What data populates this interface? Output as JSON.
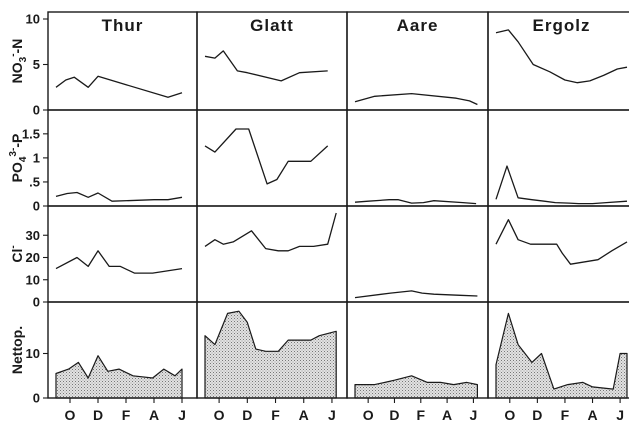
{
  "chart_data": {
    "type": "line",
    "layout": "small-multiples",
    "colors": {
      "line": "#1a1a1a",
      "area_fill": "#c8c8c8"
    },
    "grid": false,
    "legend": "none",
    "x_tick_labels": [
      "O",
      "D",
      "F",
      "A",
      "J"
    ],
    "x_tick_month_index": [
      1,
      3,
      5,
      7,
      9
    ],
    "x_range": [
      0,
      9.5
    ],
    "stations": [
      "Thur",
      "Glatt",
      "Aare",
      "Ergolz"
    ],
    "rows": [
      {
        "key": "nitrate",
        "ylabel_main": "NO",
        "ylabel_sup": "-",
        "ylabel_sub": "3",
        "ylabel_suffix": "-N",
        "ylim": [
          0,
          10
        ],
        "ticks": [
          0,
          5,
          10
        ],
        "tick_labels": [
          "0",
          "5",
          "10"
        ],
        "style": "line",
        "series": [
          {
            "x": [
              0,
              0.7,
              1.3,
              2.3,
              3.0,
              8.0,
              9.0
            ],
            "y": [
              2.5,
              3.3,
              3.6,
              2.5,
              3.7,
              1.4,
              1.9
            ]
          },
          {
            "x": [
              0,
              0.7,
              1.3,
              2.3,
              3.0,
              5.4,
              6.7,
              8.7
            ],
            "y": [
              5.9,
              5.7,
              6.5,
              4.3,
              4.1,
              3.2,
              4.1,
              4.3
            ]
          },
          {
            "x": [
              0,
              1.5,
              4.3,
              7.7,
              8.7,
              9.3
            ],
            "y": [
              0.9,
              1.5,
              1.8,
              1.3,
              1.0,
              0.6
            ]
          },
          {
            "x": [
              0,
              0.9,
              1.6,
              2.7,
              3.9,
              5.0,
              5.9,
              6.8,
              7.8,
              8.8,
              9.5
            ],
            "y": [
              8.5,
              8.8,
              7.5,
              5.0,
              4.2,
              3.3,
              3.0,
              3.2,
              3.8,
              4.5,
              4.7
            ]
          }
        ]
      },
      {
        "key": "phosphate",
        "ylabel_main": "PO",
        "ylabel_sup": "3-",
        "ylabel_sub": "4",
        "ylabel_suffix": "-P",
        "ylim": [
          0,
          1.85
        ],
        "ticks": [
          0,
          0.5,
          1.0,
          1.5
        ],
        "tick_labels": [
          "0",
          ".5",
          "1",
          "1.5"
        ],
        "style": "line",
        "series": [
          {
            "x": [
              0,
              0.8,
              1.5,
              2.3,
              3.0,
              4.0,
              7.0,
              8.0,
              9.0
            ],
            "y": [
              0.2,
              0.26,
              0.28,
              0.18,
              0.27,
              0.1,
              0.13,
              0.13,
              0.18
            ]
          },
          {
            "x": [
              0,
              0.7,
              2.2,
              3.1,
              4.4,
              5.1,
              5.9,
              6.7,
              7.5,
              8.7
            ],
            "y": [
              1.25,
              1.12,
              1.6,
              1.6,
              0.46,
              0.55,
              0.93,
              0.93,
              0.93,
              1.25
            ]
          },
          {
            "x": [
              0,
              1.0,
              2.6,
              3.3,
              4.3,
              5.2,
              6.0,
              8.2,
              9.2
            ],
            "y": [
              0.08,
              0.1,
              0.13,
              0.13,
              0.06,
              0.07,
              0.11,
              0.07,
              0.05
            ]
          },
          {
            "x": [
              0,
              0.8,
              1.6,
              2.6,
              3.5,
              4.3,
              5.3,
              6.0,
              7.0,
              8.0,
              9.5
            ],
            "y": [
              0.14,
              0.83,
              0.17,
              0.13,
              0.1,
              0.07,
              0.06,
              0.05,
              0.05,
              0.07,
              0.1
            ]
          }
        ]
      },
      {
        "key": "chloride",
        "ylabel_main": "Cl",
        "ylabel_sup": "-",
        "ylabel_sub": "",
        "ylabel_suffix": "",
        "ylim": [
          0,
          40
        ],
        "ticks": [
          0,
          10,
          20,
          30
        ],
        "tick_labels": [
          "0",
          "10",
          "20",
          "30"
        ],
        "style": "line",
        "series": [
          {
            "x": [
              0,
              1.5,
              2.3,
              3.0,
              3.8,
              4.6,
              5.6,
              6.9,
              9.0
            ],
            "y": [
              15,
              20,
              16,
              23,
              16,
              16,
              13,
              13,
              15
            ]
          },
          {
            "x": [
              0,
              0.7,
              1.3,
              2.0,
              3.3,
              4.3,
              5.2,
              5.9,
              6.7,
              7.7,
              8.7,
              9.3
            ],
            "y": [
              25,
              28,
              26,
              27,
              32,
              24,
              23,
              23,
              25,
              25,
              26,
              40
            ]
          },
          {
            "x": [
              0,
              2.7,
              4.3,
              5.1,
              6.0,
              8.0,
              9.3
            ],
            "y": [
              2,
              4,
              5,
              4,
              3.5,
              3,
              2.7
            ]
          },
          {
            "x": [
              0,
              0.9,
              1.6,
              2.5,
              3.3,
              4.4,
              4.8,
              5.4,
              7.4,
              8.4,
              9.5
            ],
            "y": [
              26,
              37,
              28,
              26,
              26,
              26,
              22,
              17,
              19,
              23,
              27
            ]
          }
        ]
      },
      {
        "key": "net_production",
        "ylabel_main": "Nettop.",
        "ylabel_sup": "",
        "ylabel_sub": "",
        "ylabel_suffix": "",
        "ylim": [
          0,
          20
        ],
        "ticks": [
          0,
          10
        ],
        "tick_labels": [
          "0",
          "10"
        ],
        "style": "area",
        "series": [
          {
            "x": [
              0,
              0.9,
              1.6,
              2.3,
              3.0,
              3.7,
              4.5,
              5.5,
              6.9,
              7.7,
              8.5,
              9.0
            ],
            "y": [
              5.5,
              6.5,
              8.0,
              4.5,
              9.5,
              6.0,
              6.5,
              5.0,
              4.5,
              6.5,
              5.0,
              6.5
            ]
          },
          {
            "x": [
              0,
              0.7,
              1.6,
              2.4,
              3.0,
              3.6,
              4.3,
              5.2,
              5.9,
              6.7,
              7.5,
              8.1,
              9.3
            ],
            "y": [
              14.0,
              12.0,
              19.0,
              19.5,
              17.0,
              11.0,
              10.5,
              10.5,
              13.0,
              13.0,
              13.0,
              14.0,
              15.0
            ]
          },
          {
            "x": [
              0,
              1.5,
              3.0,
              4.3,
              5.5,
              6.5,
              7.5,
              8.5,
              9.3
            ],
            "y": [
              3.0,
              3.0,
              4.0,
              5.0,
              3.5,
              3.5,
              3.0,
              3.5,
              3.0
            ]
          },
          {
            "x": [
              0,
              0.9,
              1.6,
              2.6,
              3.3,
              4.2,
              5.2,
              6.3,
              7.0,
              8.5,
              9.0,
              9.5
            ],
            "y": [
              7.5,
              19.0,
              12.0,
              8.0,
              10.0,
              2.0,
              3.0,
              3.5,
              2.5,
              2.0,
              10.0,
              10.0
            ]
          }
        ]
      }
    ]
  }
}
